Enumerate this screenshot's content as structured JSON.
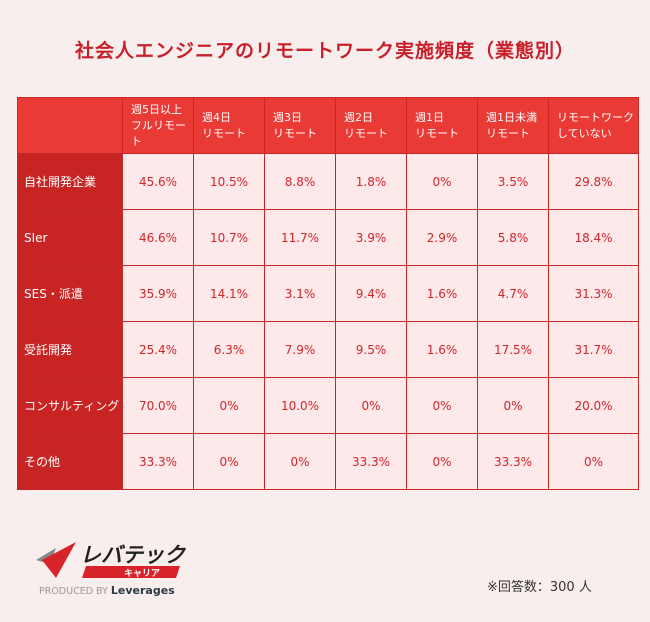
{
  "title": "社会人エンジニアのリモートワーク実施頻度（業態別）",
  "chart_data": {
    "type": "table",
    "columns": [
      "週5日以上\nフルリモート",
      "週4日\nリモート",
      "週3日\nリモート",
      "週2日\nリモート",
      "週1日\nリモート",
      "週1日未満\nリモート",
      "リモートワーク\nしていない"
    ],
    "rows": [
      {
        "label": "自社開発企業",
        "values": [
          "45.6%",
          "10.5%",
          "8.8%",
          "1.8%",
          "0%",
          "3.5%",
          "29.8%"
        ]
      },
      {
        "label": "SIer",
        "values": [
          "46.6%",
          "10.7%",
          "11.7%",
          "3.9%",
          "2.9%",
          "5.8%",
          "18.4%"
        ]
      },
      {
        "label": "SES・派遣",
        "values": [
          "35.9%",
          "14.1%",
          "3.1%",
          "9.4%",
          "1.6%",
          "4.7%",
          "31.3%"
        ]
      },
      {
        "label": "受託開発",
        "values": [
          "25.4%",
          "6.3%",
          "7.9%",
          "9.5%",
          "1.6%",
          "17.5%",
          "31.7%"
        ]
      },
      {
        "label": "コンサルティング",
        "values": [
          "70.0%",
          "0%",
          "10.0%",
          "0%",
          "0%",
          "0%",
          "20.0%"
        ]
      },
      {
        "label": "その他",
        "values": [
          "33.3%",
          "0%",
          "0%",
          "33.3%",
          "0%",
          "33.3%",
          "0%"
        ]
      }
    ]
  },
  "logo": {
    "name": "レバテック",
    "sub": "キャリア",
    "produced": "PRODUCED BY",
    "brand": "Leverages"
  },
  "note": "※回答数：300 人",
  "colors": {
    "header": "#e93a36",
    "row_header": "#c82424",
    "cell": "#fde8ea",
    "title": "#c8202a"
  }
}
